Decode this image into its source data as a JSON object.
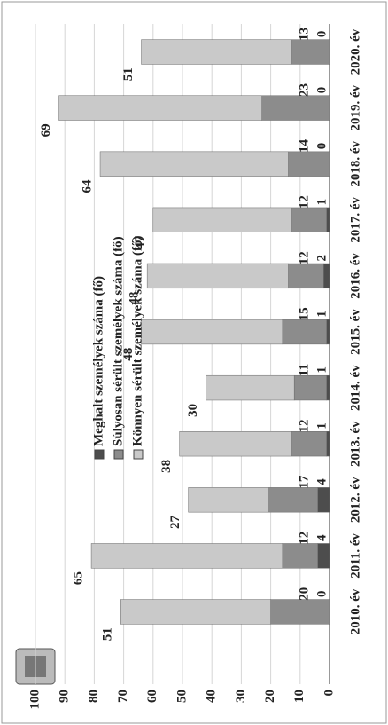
{
  "chart_data": {
    "type": "bar",
    "stacked": true,
    "categories": [
      "2010. év",
      "2011. év",
      "2012. év",
      "2013. év",
      "2014. év",
      "2015. év",
      "2016. év",
      "2017. év",
      "2018. év",
      "2019. év",
      "2020. év"
    ],
    "series": [
      {
        "name": "Meghalt személyek száma (fő)",
        "color": "#4d4d4d",
        "values": [
          0,
          4,
          4,
          1,
          1,
          1,
          2,
          1,
          0,
          0,
          0
        ]
      },
      {
        "name": "Súlyosan sérült személyek száma (fő)",
        "color": "#8c8c8c",
        "values": [
          20,
          12,
          17,
          12,
          11,
          15,
          12,
          12,
          14,
          23,
          13
        ]
      },
      {
        "name": "Könnyen sérült személyek száma (fő)",
        "color": "#c9c9c9",
        "values": [
          51,
          65,
          27,
          38,
          30,
          48,
          48,
          47,
          64,
          69,
          51
        ]
      }
    ],
    "ylim": [
      0,
      100
    ],
    "yticks": [
      0,
      10,
      20,
      30,
      40,
      50,
      60,
      70,
      80,
      90,
      100
    ],
    "grid": true
  }
}
